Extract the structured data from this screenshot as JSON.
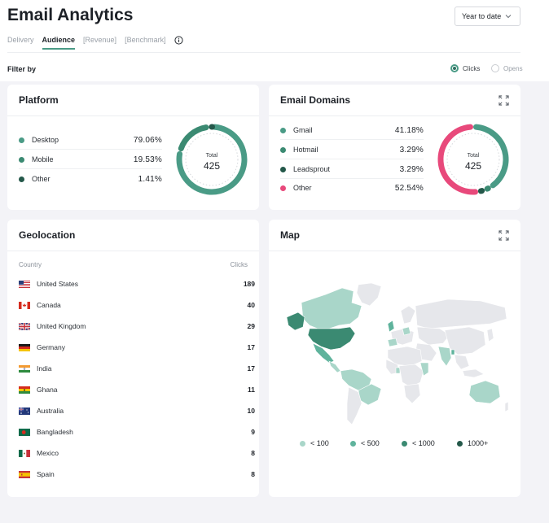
{
  "header": {
    "title": "Email Analytics",
    "period": "Year to date"
  },
  "tabs": [
    {
      "label": "Delivery",
      "active": false
    },
    {
      "label": "Audience",
      "active": true
    },
    {
      "label": "[Revenue]",
      "active": false
    },
    {
      "label": "[Benchmark]",
      "active": false
    }
  ],
  "filter": {
    "label": "Filter by",
    "options": [
      {
        "label": "Clicks",
        "selected": true
      },
      {
        "label": "Opens",
        "selected": false
      }
    ]
  },
  "platform": {
    "title": "Platform",
    "total_label": "Total",
    "total_value": "425",
    "items": [
      {
        "label": "Desktop",
        "percent": "79.06%",
        "value": 79.06,
        "color": "#4a9b86"
      },
      {
        "label": "Mobile",
        "percent": "19.53%",
        "value": 19.53,
        "color": "#3b8a72"
      },
      {
        "label": "Other",
        "percent": "1.41%",
        "value": 1.41,
        "color": "#24584a"
      }
    ]
  },
  "domains": {
    "title": "Email Domains",
    "total_label": "Total",
    "total_value": "425",
    "items": [
      {
        "label": "Gmail",
        "percent": "41.18%",
        "value": 41.18,
        "color": "#4a9b86"
      },
      {
        "label": "Hotmail",
        "percent": "3.29%",
        "value": 3.29,
        "color": "#3b8a72"
      },
      {
        "label": "Leadsprout",
        "percent": "3.29%",
        "value": 3.29,
        "color": "#24584a"
      },
      {
        "label": "Other",
        "percent": "52.54%",
        "value": 52.54,
        "color": "#e8497b"
      }
    ]
  },
  "geolocation": {
    "title": "Geolocation",
    "col_country": "Country",
    "col_clicks": "Clicks",
    "rows": [
      {
        "country": "United States",
        "flag": "us",
        "clicks": "189"
      },
      {
        "country": "Canada",
        "flag": "ca",
        "clicks": "40"
      },
      {
        "country": "United Kingdom",
        "flag": "gb",
        "clicks": "29"
      },
      {
        "country": "Germany",
        "flag": "de",
        "clicks": "17"
      },
      {
        "country": "India",
        "flag": "in",
        "clicks": "17"
      },
      {
        "country": "Ghana",
        "flag": "gh",
        "clicks": "11"
      },
      {
        "country": "Australia",
        "flag": "au",
        "clicks": "10"
      },
      {
        "country": "Bangladesh",
        "flag": "bd",
        "clicks": "9"
      },
      {
        "country": "Mexico",
        "flag": "mx",
        "clicks": "8"
      },
      {
        "country": "Spain",
        "flag": "es",
        "clicks": "8"
      }
    ]
  },
  "map": {
    "title": "Map",
    "legend": [
      {
        "label": "< 100",
        "color": "#a9d6c9"
      },
      {
        "label": "< 500",
        "color": "#5fb39c"
      },
      {
        "label": "< 1000",
        "color": "#3b8a72"
      },
      {
        "label": "1000+",
        "color": "#24584a"
      }
    ]
  }
}
